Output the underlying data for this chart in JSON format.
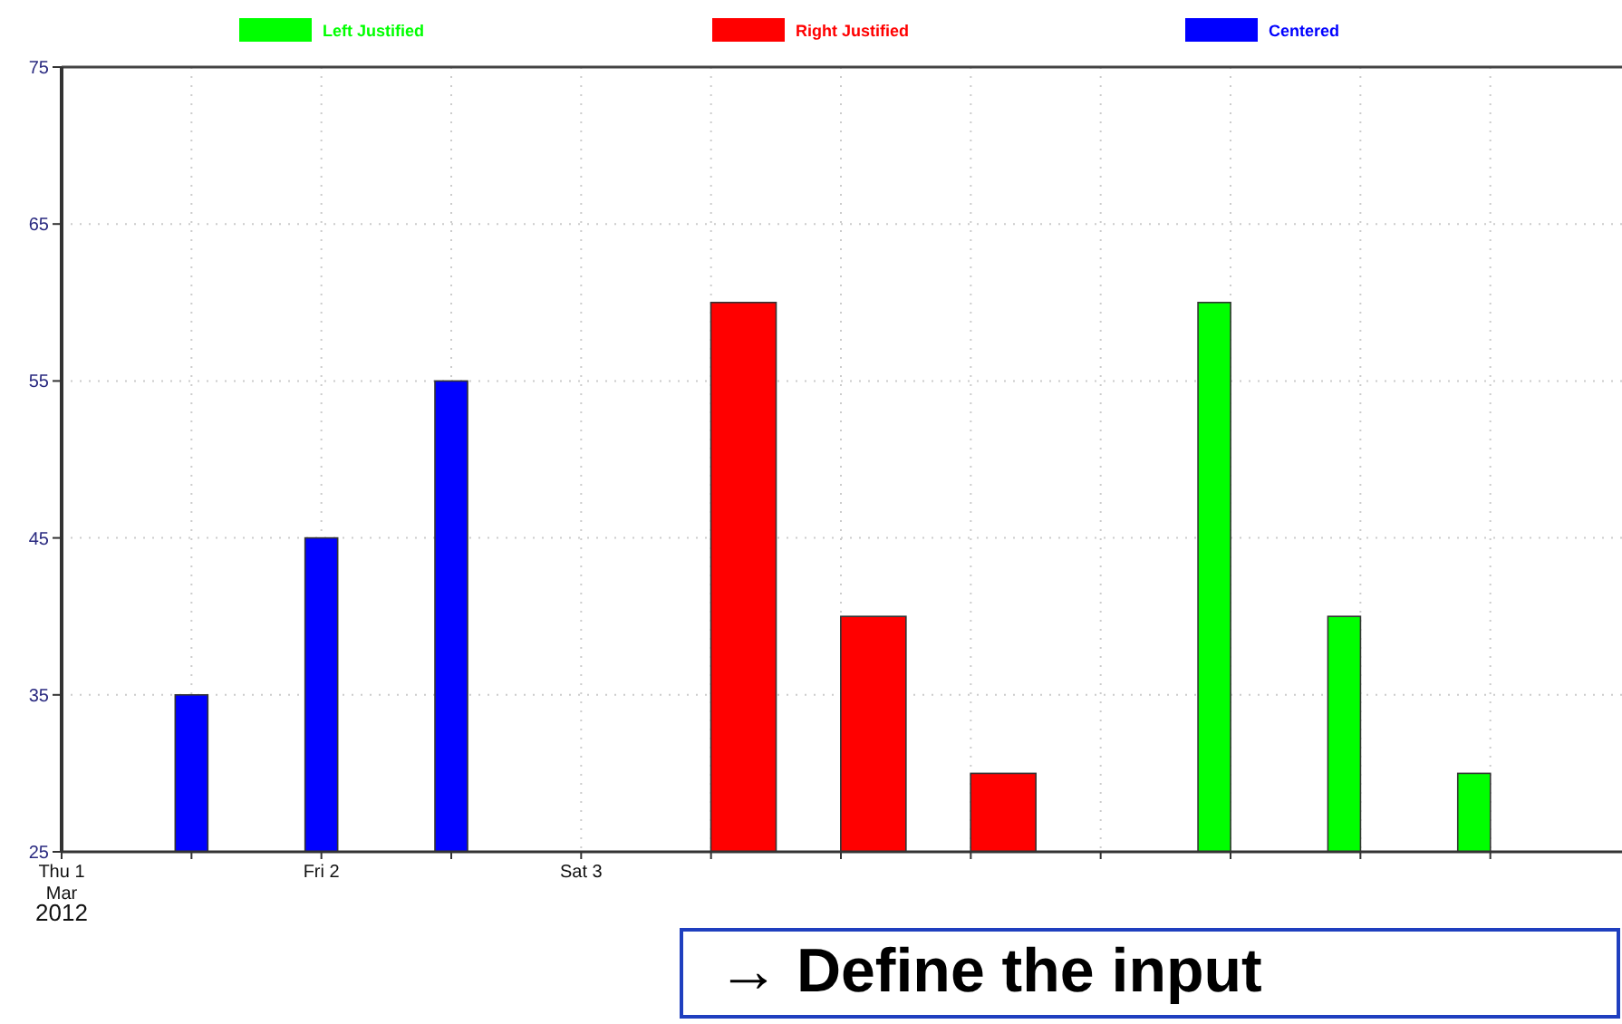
{
  "chart_data": {
    "type": "bar",
    "x": [
      "2012-03-01T12:00",
      "2012-03-02T00:00",
      "2012-03-02T12:00"
    ],
    "series": [
      {
        "name": "Left Justified",
        "color": "#00ff00",
        "x": [
          "2012-03-05T10:30",
          "2012-03-05T22:30",
          "2012-03-06T10:30"
        ],
        "values": [
          60,
          40,
          30
        ]
      },
      {
        "name": "Right Justified",
        "color": "#ff0000",
        "x": [
          "2012-03-03T15:00",
          "2012-03-04T03:00",
          "2012-03-04T15:00"
        ],
        "values": [
          60,
          40,
          30
        ]
      },
      {
        "name": "Centered",
        "color": "#0000ff",
        "values": [
          35,
          45,
          55
        ]
      }
    ],
    "xlim": [
      "2012-03-01T00:00",
      "2012-03-07T00:00"
    ],
    "xticks": [
      {
        "value": "2012-03-01T00:00",
        "label": "Thu 1\nMar\n2012"
      },
      {
        "value": "2012-03-01T12:00",
        "label": null
      },
      {
        "value": "2012-03-02T00:00",
        "label": "Fri 2"
      },
      {
        "value": "2012-03-02T12:00",
        "label": null
      },
      {
        "value": "2012-03-03T00:00",
        "label": "Sat 3"
      },
      {
        "value": "2012-03-03T12:00",
        "label": null
      },
      {
        "value": "2012-03-04T00:00",
        "label": null
      },
      {
        "value": "2012-03-04T12:00",
        "label": null
      },
      {
        "value": "2012-03-05T00:00",
        "label": null
      },
      {
        "value": "2012-03-05T12:00",
        "label": null
      },
      {
        "value": "2012-03-06T00:00",
        "label": null
      },
      {
        "value": "2012-03-06T12:00",
        "label": null
      }
    ],
    "ylim": [
      25,
      75
    ],
    "yticks": [
      25,
      35,
      45,
      55,
      65,
      75
    ],
    "grid": true,
    "legend": "top",
    "annotations": [
      "→ Define the input"
    ]
  }
}
